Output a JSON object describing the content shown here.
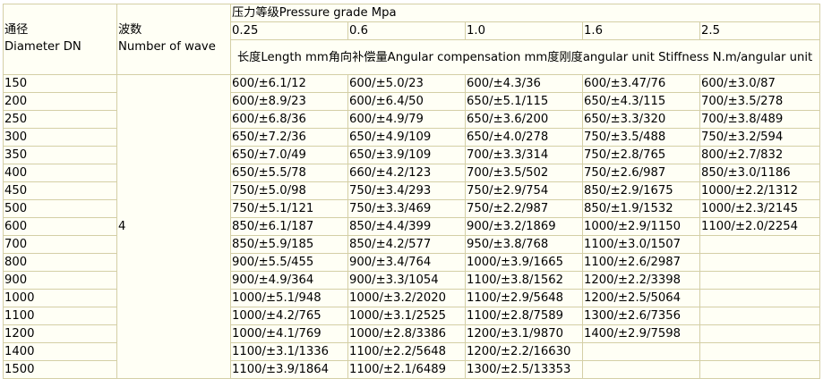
{
  "header": {
    "dn_cn": "通径",
    "dn_en": "Diameter DN",
    "wave_cn": "波数",
    "wave_en": "Number of wave",
    "pressure_title": "压力等级Pressure grade Mpa",
    "pressures": [
      "0.25",
      "0.6",
      "1.0",
      "1.6",
      "2.5"
    ],
    "subheader": "长度Length mm角向补偿量Angular compensation mm度刚度angular unit Stiffness N.m/angular unit"
  },
  "wave_count": "4",
  "rows": [
    {
      "dn": "150",
      "values": [
        "600/±6.1/12",
        "600/±5.0/23",
        "600/±4.3/36",
        "600/±3.47/76",
        "600/±3.0/87"
      ]
    },
    {
      "dn": "200",
      "values": [
        "600/±8.9/23",
        "600/±6.4/50",
        "650/±5.1/115",
        "650/±4.3/115",
        "700/±3.5/278"
      ]
    },
    {
      "dn": "250",
      "values": [
        "600/±6.8/36",
        "600/±4.9/79",
        "650/±3.6/200",
        "650/±3.3/320",
        "700/±3.8/489"
      ]
    },
    {
      "dn": "300",
      "values": [
        "650/±7.2/36",
        "650/±4.9/109",
        "650/±4.0/278",
        "750/±3.5/488",
        "750/±3.2/594"
      ]
    },
    {
      "dn": "350",
      "values": [
        "650/±7.0/49",
        "650/±3.9/109",
        "700/±3.3/314",
        "750/±2.8/765",
        "800/±2.7/832"
      ]
    },
    {
      "dn": "400",
      "values": [
        "650/±5.5/78",
        "660/±4.2/123",
        "700/±3.5/502",
        "750/±2.6/987",
        "850/±3.0/1186"
      ]
    },
    {
      "dn": "450",
      "values": [
        "750/±5.0/98",
        "750/±3.4/293",
        "750/±2.9/754",
        "850/±2.9/1675",
        "1000/±2.2/1312"
      ]
    },
    {
      "dn": "500",
      "values": [
        "750/±5.1/121",
        "750/±3.3/469",
        "750/±2.2/987",
        "850/±1.9/1532",
        "1000/±2.3/2145"
      ]
    },
    {
      "dn": "600",
      "values": [
        "850/±6.1/187",
        "850/±4.4/399",
        "900/±3.2/1869",
        "1000/±2.9/1150",
        "1100/±2.0/2254"
      ]
    },
    {
      "dn": "700",
      "values": [
        "850/±5.9/185",
        "850/±4.2/577",
        "950/±3.8/768",
        "1100/±3.0/1507",
        ""
      ]
    },
    {
      "dn": "800",
      "values": [
        "900/±5.5/455",
        "900/±3.4/764",
        "1000/±3.9/1665",
        "1100/±2.6/2987",
        ""
      ]
    },
    {
      "dn": "900",
      "values": [
        "900/±4.9/364",
        "900/±3.3/1054",
        "1100/±3.8/1562",
        "1200/±2.2/3398",
        ""
      ]
    },
    {
      "dn": "1000",
      "values": [
        "1000/±5.1/948",
        "1000/±3.2/2020",
        "1100/±2.9/5648",
        "1200/±2.5/5064",
        ""
      ]
    },
    {
      "dn": "1100",
      "values": [
        "1000/±4.2/765",
        "1000/±3.1/2525",
        "1100/±2.8/7589",
        "1300/±2.6/7356",
        ""
      ]
    },
    {
      "dn": "1200",
      "values": [
        "1000/±4.1/769",
        "1000/±2.8/3386",
        "1200/±3.1/9870",
        "1400/±2.9/7598",
        ""
      ]
    },
    {
      "dn": "1400",
      "values": [
        "1100/±3.1/1336",
        "1100/±2.2/5648",
        "1200/±2.2/16630",
        "",
        ""
      ]
    },
    {
      "dn": "1500",
      "values": [
        "1100/±3.9/1864",
        "1100/±2.1/6489",
        "1300/±2.5/13353",
        "",
        ""
      ]
    }
  ]
}
